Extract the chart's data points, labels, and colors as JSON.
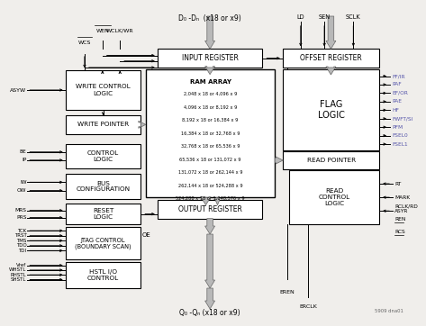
{
  "bg_color": "#f0eeeb",
  "box_fill": "#ffffff",
  "box_edge": "#000000",
  "gray": "#aaaaaa",
  "gray_dark": "#888888",
  "blue": "#5555aa",
  "black": "#000000",
  "footer": "5909 dna01",
  "top_label": "D₀ -Dₙ  (x18 or x9)",
  "bottom_label": "Q₀ -Qₙ (x18 or x9)",
  "ram_text": [
    "RAM ARRAY",
    "2,048 x 18 or 4,096 x 9",
    "4,096 x 18 or 8,192 x 9",
    "8,192 x 18 or 16,384 x 9",
    "16,384 x 18 or 32,768 x 9",
    "32,768 x 18 or 65,536 x 9",
    "65,536 x 18 or 131,072 x 9",
    "131,072 x 18 or 262,144 x 9",
    "262,144 x 18 or 524,288 x 9",
    "524,288 x 18 or 1,048,576 x 9"
  ],
  "right_flags": [
    "FF/IR",
    "PAF",
    "EF/OR",
    "PAE",
    "HF",
    "FWFT/SI",
    "PFM",
    "FSEL0",
    "FSEL1"
  ],
  "rc_inputs": [
    "RT",
    "MARK",
    "ASYR"
  ],
  "rc_outputs": [
    "RCLK/RD",
    "REN",
    "RCS"
  ]
}
